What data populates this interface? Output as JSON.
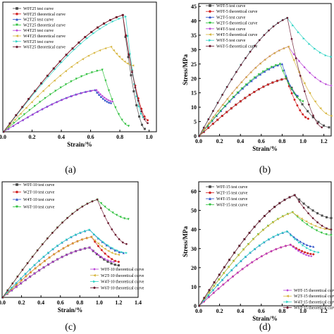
{
  "figure": {
    "panels": [
      {
        "label": "(a)",
        "xlabel": "Strain/%",
        "ylabel": "",
        "xlim": [
          0,
          1.05
        ],
        "ylim": [
          0,
          45
        ],
        "xticks": [
          0,
          0.2,
          0.4,
          0.6,
          0.8,
          1.0
        ],
        "xtick_labels": [
          "0.0",
          "0.2",
          "0.4",
          "0.6",
          "0.8",
          "1.0"
        ],
        "yticks": [],
        "ytick_labels": [],
        "legend": [
          {
            "label": "W0T25 test curve",
            "color": "#4a4a4a",
            "marker": "square"
          },
          {
            "label": "W0T25 theoretical curve",
            "color": "#d11f1f",
            "marker": "circle"
          },
          {
            "label": "W2T25 test curve",
            "color": "#2b4fc7",
            "marker": "triangle"
          },
          {
            "label": "W2T25 theoretical curve",
            "color": "#2bbf3a",
            "marker": "triangle-down"
          },
          {
            "label": "W4T25 test curve",
            "color": "#b83fd6",
            "marker": "diamond"
          },
          {
            "label": "W4T25 theoretical curve",
            "color": "#d6b43a",
            "marker": "triangle-left"
          },
          {
            "label": "W6T25 test curve",
            "color": "#2ed3c4",
            "marker": "triangle-right"
          },
          {
            "label": "W6T25 theoretical curve",
            "color": "#6b1a30",
            "marker": "hexagon"
          }
        ]
      },
      {
        "label": "(b)",
        "xlabel": "Strain/%",
        "ylabel": "Stress/MPa",
        "xlim": [
          0,
          1.27
        ],
        "ylim": [
          0,
          46
        ],
        "xticks": [
          0,
          0.2,
          0.4,
          0.6,
          0.8,
          1.0,
          1.2
        ],
        "xtick_labels": [
          "0.0",
          "0.2",
          "0.4",
          "0.6",
          "0.8",
          "1.0",
          "1.2"
        ],
        "yticks": [
          0,
          5,
          10,
          15,
          20,
          25,
          30,
          35,
          40,
          45
        ],
        "ytick_labels": [
          "0",
          "5",
          "10",
          "15",
          "20",
          "25",
          "30",
          "35",
          "40",
          "45"
        ],
        "legend": [
          {
            "label": "W0T-5 test curve",
            "color": "#4a4a4a",
            "marker": "square"
          },
          {
            "label": "W0T-5 theoretical curve",
            "color": "#d11f1f",
            "marker": "circle"
          },
          {
            "label": "W2T-5 test curve",
            "color": "#2b4fc7",
            "marker": "triangle"
          },
          {
            "label": "W2T-5 theoretical curve",
            "color": "#2bbf3a",
            "marker": "triangle-down"
          },
          {
            "label": "W4T-5 test curve",
            "color": "#b83fd6",
            "marker": "diamond"
          },
          {
            "label": "W4T-5 theoretical curve",
            "color": "#d6b43a",
            "marker": "triangle-left"
          },
          {
            "label": "W6T-5 test curve",
            "color": "#2ed3c4",
            "marker": "triangle-right"
          },
          {
            "label": "W6T-5 theoretical curve",
            "color": "#6b1a30",
            "marker": "hexagon"
          }
        ]
      },
      {
        "label": "(c)",
        "xlabel": "Strain/%",
        "ylabel": "",
        "xlim": [
          0,
          1.4
        ],
        "ylim": [
          0,
          65
        ],
        "xticks": [
          0,
          0.2,
          0.4,
          0.6,
          0.8,
          1.0,
          1.2,
          1.4
        ],
        "xtick_labels": [
          "0.0",
          "0.2",
          "0.4",
          "0.6",
          "0.8",
          "1.0",
          "1.2",
          "1.4"
        ],
        "yticks": [],
        "ytick_labels": [],
        "legend": [
          {
            "label": "W0T-10 test curve",
            "color": "#4a4a4a",
            "marker": "square"
          },
          {
            "label": "W2T-10 test curve",
            "color": "#d11f1f",
            "marker": "circle"
          },
          {
            "label": "W4T-10 test curve",
            "color": "#2b4fc7",
            "marker": "triangle"
          },
          {
            "label": "W6T-10 test curve",
            "color": "#2bbf3a",
            "marker": "triangle-down"
          }
        ],
        "legend2": [
          {
            "label": "W0T-10 theoretical curve",
            "color": "#b83fd6",
            "marker": "diamond"
          },
          {
            "label": "W2T-10 theoretical curve",
            "color": "#d6b43a",
            "marker": "triangle-left"
          },
          {
            "label": "W4T-10 theoretical curve",
            "color": "#2ed3c4",
            "marker": "triangle-right"
          },
          {
            "label": "W6T-10 theoretical curve",
            "color": "#6b1a30",
            "marker": "hexagon"
          }
        ]
      },
      {
        "label": "(d)",
        "xlabel": "Strain/%",
        "ylabel": "Stress/MPa",
        "xlim": [
          0,
          1.27
        ],
        "ylim": [
          0,
          65
        ],
        "xticks": [
          0,
          0.2,
          0.4,
          0.6,
          0.8,
          1.0,
          1.2
        ],
        "xtick_labels": [
          "0.0",
          "0.2",
          "0.4",
          "0.6",
          "0.8",
          "1.0",
          "1.2"
        ],
        "yticks": [
          0,
          10,
          20,
          30,
          40,
          50,
          60
        ],
        "ytick_labels": [
          "0",
          "10",
          "20",
          "30",
          "40",
          "50",
          "60"
        ],
        "legend": [
          {
            "label": "W0T-15 test curve",
            "color": "#4a4a4a",
            "marker": "square"
          },
          {
            "label": "W2T-15 test curve",
            "color": "#d11f1f",
            "marker": "circle"
          },
          {
            "label": "W4T-15 test curve",
            "color": "#2b4fc7",
            "marker": "triangle"
          },
          {
            "label": "W6T-15 test curve",
            "color": "#2bbf3a",
            "marker": "triangle-down"
          }
        ],
        "legend2": [
          {
            "label": "W0T-15 theoretical curve",
            "color": "#b83fd6",
            "marker": "diamond"
          },
          {
            "label": "W2T-15 theoretical curve",
            "color": "#d6b43a",
            "marker": "triangle-left"
          },
          {
            "label": "W4T-15 theoretical curve",
            "color": "#2ed3c4",
            "marker": "triangle-right"
          },
          {
            "label": "W6T-15 theoretical curve",
            "color": "#6b1a30",
            "marker": "hexagon"
          }
        ]
      }
    ]
  },
  "chart_data": [
    {
      "type": "line",
      "xlim": [
        0,
        1.05
      ],
      "ylim": [
        0,
        45
      ],
      "series": [
        {
          "name": "W0T25 test curve",
          "color": "#4a4a4a",
          "peak": [
            0.82,
            40.5
          ],
          "end": [
            0.97,
            1.0
          ]
        },
        {
          "name": "W0T25 theoretical curve",
          "color": "#d11f1f",
          "peak": [
            0.82,
            40.5
          ],
          "end": [
            0.99,
            4.0
          ]
        },
        {
          "name": "W2T25 test curve",
          "color": "#2b4fc7",
          "peak": [
            0.63,
            14.5
          ],
          "end": [
            0.74,
            10.0
          ]
        },
        {
          "name": "W2T25 theoretical curve",
          "color": "#2bbf3a",
          "peak": [
            0.68,
            21.5
          ],
          "end": [
            0.86,
            2.0
          ]
        },
        {
          "name": "W4T25 test curve",
          "color": "#b83fd6",
          "peak": [
            0.64,
            14.5
          ],
          "end": [
            0.75,
            10.5
          ]
        },
        {
          "name": "W4T25 theoretical curve",
          "color": "#d6b43a",
          "peak": [
            0.74,
            29.5
          ],
          "end": [
            0.89,
            23.0
          ]
        },
        {
          "name": "W6T25 test curve",
          "color": "#2ed3c4",
          "peak": [
            0.84,
            40.0
          ],
          "end": [
            0.96,
            5.0
          ]
        },
        {
          "name": "W6T25 theoretical curve",
          "color": "#6b1a30",
          "peak": [
            0.82,
            40.5
          ],
          "end": [
            0.99,
            3.0
          ]
        }
      ]
    },
    {
      "type": "line",
      "xlim": [
        0,
        1.27
      ],
      "ylim": [
        0,
        46
      ],
      "series": [
        {
          "name": "W0T-5 test curve",
          "color": "#4a4a4a",
          "peak": [
            0.84,
            20.0
          ],
          "end": [
            1.25,
            3.0
          ]
        },
        {
          "name": "W0T-5 theoretical curve",
          "color": "#d11f1f",
          "peak": [
            0.84,
            20.0
          ],
          "end": [
            1.05,
            6.0
          ]
        },
        {
          "name": "W2T-5 test curve",
          "color": "#2b4fc7",
          "peak": [
            0.8,
            25.0
          ],
          "end": [
            0.95,
            14.0
          ]
        },
        {
          "name": "W2T-5 theoretical curve",
          "color": "#2bbf3a",
          "peak": [
            0.78,
            25.0
          ],
          "end": [
            1.0,
            12.0
          ]
        },
        {
          "name": "W4T-5 test curve",
          "color": "#b83fd6",
          "peak": [
            0.86,
            31.0
          ],
          "end": [
            1.27,
            17.5
          ]
        },
        {
          "name": "W4T-5 theoretical curve",
          "color": "#d6b43a",
          "peak": [
            0.86,
            31.0
          ],
          "end": [
            1.27,
            7.0
          ]
        },
        {
          "name": "W6T-5 test curve",
          "color": "#2ed3c4",
          "peak": [
            0.85,
            41.0
          ],
          "end": [
            1.27,
            27.5
          ]
        },
        {
          "name": "W6T-5 theoretical curve",
          "color": "#6b1a30",
          "peak": [
            0.85,
            41.0
          ],
          "end": [
            1.18,
            3.0
          ]
        }
      ]
    },
    {
      "type": "line",
      "xlim": [
        0,
        1.4
      ],
      "ylim": [
        0,
        65
      ],
      "series": [
        {
          "name": "W0T-10 test curve",
          "color": "#4a4a4a",
          "peak": [
            0.9,
            28.0
          ],
          "end": [
            1.2,
            18.0
          ]
        },
        {
          "name": "W2T-10 test curve",
          "color": "#d11f1f",
          "peak": [
            0.92,
            34.0
          ],
          "end": [
            1.2,
            20.0
          ]
        },
        {
          "name": "W4T-10 test curve",
          "color": "#2b4fc7",
          "peak": [
            0.9,
            38.0
          ],
          "end": [
            1.25,
            25.0
          ]
        },
        {
          "name": "W6T-10 test curve",
          "color": "#2bbf3a",
          "peak": [
            0.98,
            55.0
          ],
          "end": [
            1.3,
            44.0
          ]
        },
        {
          "name": "W0T-10 theoretical curve",
          "color": "#b83fd6",
          "peak": [
            0.9,
            28.0
          ],
          "end": [
            1.15,
            20.0
          ]
        },
        {
          "name": "W2T-10 theoretical curve",
          "color": "#d6b43a",
          "peak": [
            0.92,
            34.0
          ],
          "end": [
            1.2,
            24.0
          ]
        },
        {
          "name": "W4T-10 theoretical curve",
          "color": "#2ed3c4",
          "peak": [
            0.9,
            38.0
          ],
          "end": [
            1.28,
            25.0
          ]
        },
        {
          "name": "W6T-10 theoretical curve",
          "color": "#6b1a30",
          "peak": [
            0.98,
            55.0
          ],
          "end": [
            1.28,
            30.0
          ]
        }
      ]
    },
    {
      "type": "line",
      "xlim": [
        0,
        1.27
      ],
      "ylim": [
        0,
        65
      ],
      "series": [
        {
          "name": "W0T-15 test curve",
          "color": "#4a4a4a",
          "peak": [
            0.92,
            58.0
          ],
          "end": [
            1.27,
            46.0
          ]
        },
        {
          "name": "W2T-15 test curve",
          "color": "#d11f1f",
          "peak": [
            0.88,
            32.0
          ],
          "end": [
            1.1,
            27.0
          ]
        },
        {
          "name": "W4T-15 test curve",
          "color": "#2b4fc7",
          "peak": [
            0.85,
            39.0
          ],
          "end": [
            1.1,
            31.0
          ]
        },
        {
          "name": "W6T-15 test curve",
          "color": "#2bbf3a",
          "peak": [
            0.9,
            49.0
          ],
          "end": [
            1.27,
            37.0
          ]
        },
        {
          "name": "W0T-15 theoretical curve",
          "color": "#b83fd6",
          "peak": [
            0.88,
            32.0
          ],
          "end": [
            1.08,
            26.0
          ]
        },
        {
          "name": "W2T-15 theoretical curve",
          "color": "#d6b43a",
          "peak": [
            0.9,
            49.0
          ],
          "end": [
            1.25,
            40.0
          ]
        },
        {
          "name": "W4T-15 theoretical curve",
          "color": "#2ed3c4",
          "peak": [
            0.85,
            39.0
          ],
          "end": [
            1.15,
            28.0
          ]
        },
        {
          "name": "W6T-15 theoretical curve",
          "color": "#6b1a30",
          "peak": [
            0.92,
            58.0
          ],
          "end": [
            1.27,
            40.0
          ]
        }
      ]
    }
  ]
}
